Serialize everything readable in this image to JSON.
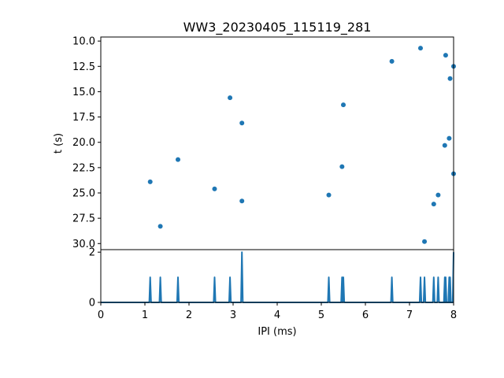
{
  "chart_data": [
    {
      "type": "scatter",
      "title": "WW3_20230405_115119_281",
      "xlabel": "",
      "ylabel": "t (s)",
      "xlim": [
        0,
        8
      ],
      "ylim": [
        30.6,
        9.6
      ],
      "y_inverted": true,
      "yticks": [
        "10.0",
        "12.5",
        "15.0",
        "17.5",
        "20.0",
        "22.5",
        "25.0",
        "27.5",
        "30.0"
      ],
      "marker_color": "#1f77b4",
      "series": [
        {
          "x": [
            1.12,
            1.35,
            1.75,
            2.58,
            2.93,
            3.2,
            3.2,
            5.17,
            5.47,
            5.5,
            6.6,
            7.25,
            7.34,
            7.55,
            7.65,
            7.8,
            7.82,
            7.9,
            7.92,
            8.0,
            8.0
          ],
          "y": [
            23.9,
            28.3,
            21.7,
            24.6,
            15.6,
            18.1,
            25.8,
            25.2,
            22.4,
            16.3,
            12.0,
            10.7,
            29.8,
            26.1,
            25.2,
            20.3,
            11.4,
            19.6,
            13.7,
            12.5,
            23.1
          ]
        }
      ]
    },
    {
      "type": "line",
      "title": "",
      "xlabel": "IPI (ms)",
      "ylabel": "",
      "xlim": [
        0,
        8
      ],
      "ylim": [
        0,
        2.1
      ],
      "xticks": [
        "0",
        "1",
        "2",
        "3",
        "4",
        "5",
        "6",
        "7",
        "8"
      ],
      "yticks": [
        "0",
        "2"
      ],
      "line_color": "#1f77b4",
      "series": [
        {
          "peaks_x": [
            1.12,
            1.35,
            1.75,
            2.58,
            2.93,
            3.2,
            5.17,
            5.47,
            5.5,
            6.6,
            7.25,
            7.34,
            7.55,
            7.65,
            7.8,
            7.82,
            7.9,
            7.92,
            8.0
          ],
          "peaks_y": [
            1,
            1,
            1,
            1,
            1,
            2,
            1,
            1,
            1,
            1,
            1,
            1,
            1,
            1,
            1,
            1,
            1,
            1,
            2
          ]
        }
      ]
    }
  ]
}
